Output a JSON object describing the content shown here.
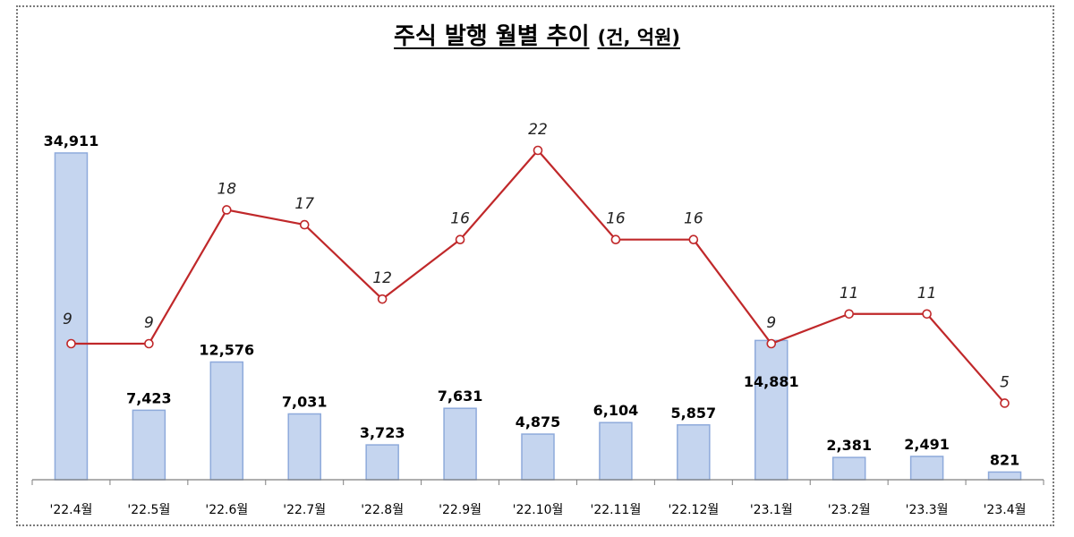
{
  "title": {
    "main": "주식 발행 월별 추이",
    "unit": "(건, 억원)"
  },
  "colors": {
    "bar_fill": "#c5d5ef",
    "bar_stroke": "#8eaadb",
    "line": "#c0282a",
    "marker_fill": "#ffffff",
    "axis": "#7f7f7f"
  },
  "chart_data": {
    "type": "bar",
    "categories": [
      "'22.4월",
      "'22.5월",
      "'22.6월",
      "'22.7월",
      "'22.8월",
      "'22.9월",
      "'22.10월",
      "'22.11월",
      "'22.12월",
      "'23.1월",
      "'23.2월",
      "'23.3월",
      "'23.4월"
    ],
    "series": [
      {
        "type": "bar",
        "values": [
          34911,
          7423,
          12576,
          7031,
          3723,
          7631,
          4875,
          6104,
          5857,
          14881,
          2381,
          2491,
          821
        ],
        "labels": [
          "34,911",
          "7,423",
          "12,576",
          "7,031",
          "3,723",
          "7,631",
          "4,875",
          "6,104",
          "5,857",
          "14,881",
          "2,381",
          "2,491",
          "821"
        ]
      },
      {
        "type": "line",
        "values": [
          9,
          9,
          18,
          17,
          12,
          16,
          22,
          16,
          16,
          9,
          11,
          11,
          5
        ],
        "labels": [
          "9",
          "9",
          "18",
          "17",
          "12",
          "16",
          "22",
          "16",
          "16",
          "9",
          "11",
          "11",
          "5"
        ]
      }
    ],
    "ylim_bar": [
      0,
      35000
    ],
    "ylim_line": [
      -13,
      26
    ],
    "grid": false,
    "legend": "none"
  }
}
